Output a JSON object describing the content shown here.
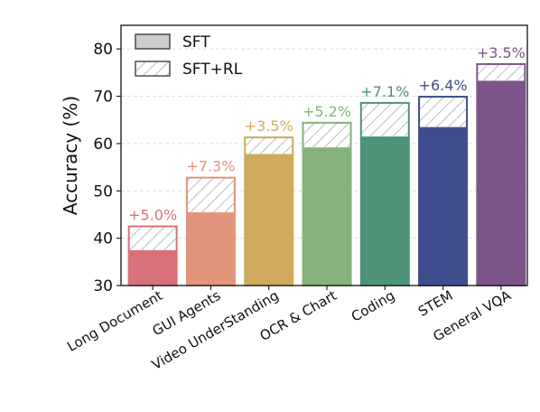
{
  "chart_data": {
    "type": "bar",
    "title": "",
    "xlabel": "",
    "ylabel": "Accuracy (%)",
    "ylim": [
      30,
      85
    ],
    "yticks": [
      30,
      40,
      50,
      60,
      70,
      80
    ],
    "grid": "horizontal dashed",
    "legend_position": "top-left",
    "categories": [
      "Long Document",
      "GUI Agents",
      "Video UnderStanding",
      "OCR & Chart",
      "Coding",
      "STEM",
      "General VQA"
    ],
    "series": [
      {
        "name": "SFT",
        "values": [
          37.5,
          45.5,
          57.8,
          59.2,
          61.5,
          63.5,
          73.3
        ]
      },
      {
        "name": "SFT+RL",
        "values": [
          42.5,
          52.8,
          61.3,
          64.4,
          68.6,
          69.9,
          76.8
        ]
      }
    ],
    "annotations": [
      "+5.0%",
      "+7.3%",
      "+3.5%",
      "+5.2%",
      "+7.1%",
      "+6.4%",
      "+3.5%"
    ],
    "colors": [
      "#d9717b",
      "#e2957a",
      "#cfaa5c",
      "#85b27a",
      "#4d9478",
      "#3e4e8c",
      "#7c548a"
    ]
  }
}
